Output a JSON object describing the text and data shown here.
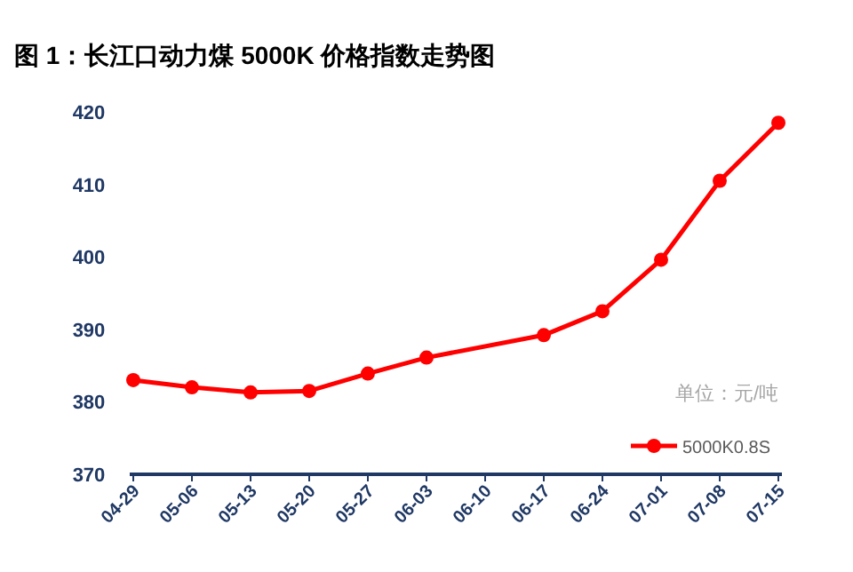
{
  "chart_data": {
    "type": "line",
    "title": "图 1：长江口动力煤 5000K 价格指数走势图",
    "categories": [
      "04-29",
      "05-06",
      "05-13",
      "05-20",
      "05-27",
      "06-03",
      "06-10",
      "06-17",
      "06-24",
      "07-01",
      "07-08",
      "07-15"
    ],
    "series": [
      {
        "name": "5000K0.8S",
        "color": "#ff0000",
        "values": [
          383.0,
          382.0,
          381.3,
          381.5,
          383.9,
          386.1,
          null,
          389.2,
          392.5,
          399.6,
          410.5,
          418.5
        ]
      }
    ],
    "ylim": [
      370,
      420
    ],
    "yticks": [
      370,
      380,
      390,
      400,
      410,
      420
    ],
    "annotations": [
      "单位：元/吨"
    ],
    "marker": "circle",
    "line_style": "solid",
    "grid": false,
    "legend": "bottom right"
  }
}
